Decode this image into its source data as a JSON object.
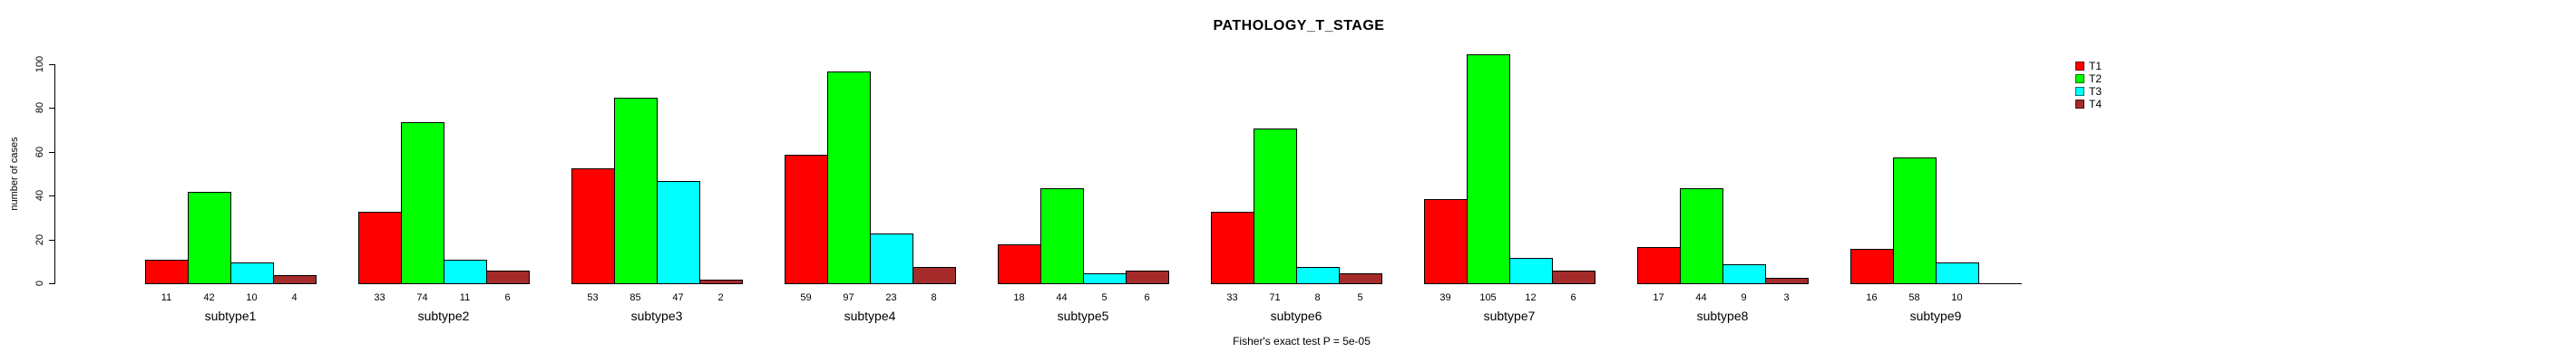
{
  "chart_data": {
    "type": "bar",
    "title": "PATHOLOGY_T_STAGE",
    "ylabel": "number of cases",
    "xlabel": "",
    "categories": [
      "subtype1",
      "subtype2",
      "subtype3",
      "subtype4",
      "subtype5",
      "subtype6",
      "subtype7",
      "subtype8",
      "subtype9"
    ],
    "series": [
      {
        "name": "T1",
        "color": "#FF0000",
        "values": [
          11,
          33,
          53,
          59,
          18,
          33,
          39,
          17,
          16
        ]
      },
      {
        "name": "T2",
        "color": "#00FF00",
        "values": [
          42,
          74,
          85,
          97,
          44,
          71,
          105,
          44,
          58
        ]
      },
      {
        "name": "T3",
        "color": "#00FFFF",
        "values": [
          10,
          11,
          47,
          23,
          5,
          8,
          12,
          9,
          10
        ]
      },
      {
        "name": "T4",
        "color": "#A52A2A",
        "values": [
          4,
          6,
          2,
          8,
          6,
          5,
          6,
          3,
          null
        ]
      }
    ],
    "yticks": [
      0,
      20,
      40,
      60,
      80,
      100
    ],
    "ylim": [
      0,
      110
    ],
    "grid": false,
    "legend_position": "right",
    "bar_value_labels": true,
    "annotation": "Fisher's exact test P = 5e-05"
  }
}
